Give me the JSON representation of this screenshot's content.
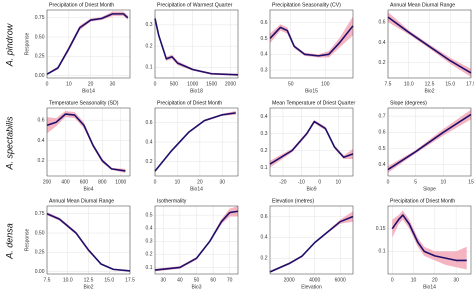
{
  "row_labels": [
    "A. pindrow",
    "A. spectabilis",
    "A. densa"
  ],
  "chart_data": [
    {
      "type": "line",
      "title": "Precipitation of Driest Month",
      "xlabel": "Bio14",
      "ylabel": "Response",
      "color": "#1f0f6b",
      "band_color": "#f3a7b7",
      "x": [
        0,
        5,
        10,
        15,
        20,
        25,
        30,
        35,
        37
      ],
      "values": [
        0.02,
        0.1,
        0.35,
        0.62,
        0.72,
        0.74,
        0.8,
        0.8,
        0.75
      ],
      "lower": [
        0.01,
        0.08,
        0.32,
        0.59,
        0.7,
        0.72,
        0.77,
        0.77,
        0.72
      ],
      "upper": [
        0.03,
        0.12,
        0.38,
        0.65,
        0.74,
        0.76,
        0.83,
        0.83,
        0.78
      ],
      "xlim": [
        0,
        38
      ],
      "ylim": [
        -0.03,
        0.85
      ],
      "xticks": [
        0,
        10,
        20,
        30
      ],
      "yticks": [
        {
          "value": 0,
          "label": "0.00"
        },
        0.25,
        {
          "value": 0.5,
          "label": "0.50"
        },
        0.75
      ]
    },
    {
      "type": "line",
      "title": "Precipitation of Warmest Quarter",
      "xlabel": "Bio18",
      "color": "#1f0f6b",
      "band_color": "#f3a7b7",
      "x": [
        0,
        100,
        300,
        450,
        600,
        1000,
        1500,
        2200
      ],
      "values": [
        0.33,
        0.25,
        0.14,
        0.15,
        0.12,
        0.09,
        0.07,
        0.065
      ],
      "lower": [
        0.31,
        0.24,
        0.13,
        0.14,
        0.11,
        0.085,
        0.065,
        0.06
      ],
      "upper": [
        0.35,
        0.26,
        0.15,
        0.16,
        0.13,
        0.095,
        0.075,
        0.07
      ],
      "xlim": [
        0,
        2200
      ],
      "ylim": [
        0.05,
        0.37
      ],
      "xticks": [
        0,
        500,
        1000,
        1500,
        2000
      ],
      "yticks": [
        0.1,
        0.2,
        0.3
      ]
    },
    {
      "type": "line",
      "title": "Precipitation Seasonality (CV)",
      "xlabel": "Bio15",
      "color": "#1f0f6b",
      "band_color": "#f3a7b7",
      "x": [
        20,
        35,
        45,
        55,
        70,
        90,
        105,
        120,
        140
      ],
      "values": [
        0.5,
        0.57,
        0.55,
        0.45,
        0.4,
        0.39,
        0.4,
        0.47,
        0.58
      ],
      "lower": [
        0.47,
        0.55,
        0.53,
        0.44,
        0.39,
        0.38,
        0.38,
        0.44,
        0.52
      ],
      "upper": [
        0.53,
        0.59,
        0.57,
        0.46,
        0.41,
        0.4,
        0.42,
        0.5,
        0.64
      ],
      "xlim": [
        20,
        140
      ],
      "ylim": [
        0.25,
        0.68
      ],
      "xticks": [
        50,
        100
      ],
      "yticks": [
        0.3,
        0.4,
        0.5,
        0.6
      ]
    },
    {
      "type": "line",
      "title": "Annual Mean Diurnal Range",
      "xlabel": "Bio2",
      "color": "#1f0f6b",
      "band_color": "#f3a7b7",
      "x": [
        7.5,
        10,
        12.5,
        15,
        17.5
      ],
      "values": [
        0.65,
        0.5,
        0.36,
        0.22,
        0.1
      ],
      "lower": [
        0.6,
        0.48,
        0.34,
        0.19,
        0.06
      ],
      "upper": [
        0.7,
        0.52,
        0.38,
        0.25,
        0.14
      ],
      "xlim": [
        7.5,
        17.5
      ],
      "ylim": [
        0.05,
        0.72
      ],
      "xticks": [
        7.5,
        {
          "value": 10,
          "label": "10.0"
        },
        12.5,
        {
          "value": 15,
          "label": "15.0"
        },
        17.5
      ],
      "yticks": [
        0.2,
        0.4,
        0.6
      ]
    },
    {
      "type": "line",
      "title": "Temperature Seasonality (SD)",
      "xlabel": "Bio4",
      "color": "#1f0f6b",
      "band_color": "#f3a7b7",
      "x": [
        200,
        300,
        400,
        500,
        600,
        700,
        800,
        900,
        1050
      ],
      "values": [
        0.55,
        0.58,
        0.66,
        0.65,
        0.55,
        0.35,
        0.2,
        0.12,
        0.1
      ],
      "lower": [
        0.47,
        0.54,
        0.63,
        0.62,
        0.52,
        0.33,
        0.18,
        0.11,
        0.08
      ],
      "upper": [
        0.63,
        0.62,
        0.69,
        0.68,
        0.58,
        0.37,
        0.22,
        0.13,
        0.12
      ],
      "xlim": [
        200,
        1100
      ],
      "ylim": [
        0.05,
        0.72
      ],
      "xticks": [
        200,
        400,
        600,
        800,
        1000
      ],
      "yticks": [
        0.2,
        0.4,
        0.6
      ]
    },
    {
      "type": "line",
      "title": "Precipitation of Driest Month",
      "xlabel": "Bio14",
      "color": "#1f0f6b",
      "band_color": "#f3a7b7",
      "x": [
        0,
        7,
        15,
        22,
        30,
        36
      ],
      "values": [
        0.1,
        0.3,
        0.5,
        0.62,
        0.68,
        0.7
      ],
      "lower": [
        0.09,
        0.29,
        0.49,
        0.61,
        0.67,
        0.68
      ],
      "upper": [
        0.11,
        0.31,
        0.51,
        0.63,
        0.69,
        0.72
      ],
      "xlim": [
        0,
        37
      ],
      "ylim": [
        0.05,
        0.75
      ],
      "xticks": [
        0,
        10,
        20,
        30
      ],
      "yticks": [
        0.2,
        0.4,
        0.6
      ]
    },
    {
      "type": "line",
      "title": "Mean Temperature of Driest Quarter",
      "xlabel": "Bio9",
      "color": "#1f0f6b",
      "band_color": "#f3a7b7",
      "x": [
        -27,
        -15,
        -7,
        -3,
        3,
        8,
        13,
        18
      ],
      "values": [
        0.12,
        0.2,
        0.3,
        0.37,
        0.33,
        0.22,
        0.16,
        0.18
      ],
      "lower": [
        0.1,
        0.19,
        0.29,
        0.36,
        0.32,
        0.21,
        0.15,
        0.15
      ],
      "upper": [
        0.14,
        0.21,
        0.31,
        0.38,
        0.34,
        0.23,
        0.17,
        0.21
      ],
      "xlim": [
        -27,
        18
      ],
      "ylim": [
        0.05,
        0.45
      ],
      "xticks": [
        -20,
        -10,
        0,
        10
      ],
      "yticks": [
        0.1,
        0.2,
        0.3,
        0.4
      ]
    },
    {
      "type": "line",
      "title": "Slope (degrees)",
      "xlabel": "Slope",
      "color": "#1f0f6b",
      "band_color": "#f3a7b7",
      "x": [
        0,
        5,
        10,
        15
      ],
      "values": [
        0.37,
        0.48,
        0.6,
        0.71
      ],
      "lower": [
        0.35,
        0.47,
        0.58,
        0.68
      ],
      "upper": [
        0.39,
        0.49,
        0.62,
        0.74
      ],
      "xlim": [
        0,
        15
      ],
      "ylim": [
        0.33,
        0.75
      ],
      "xticks": [
        0,
        5,
        10,
        15
      ],
      "yticks": [
        0.4,
        0.5,
        0.6,
        0.7
      ]
    },
    {
      "type": "line",
      "title": "Annual Mean Diurnal Range",
      "xlabel": "Bio2",
      "ylabel": "Response",
      "color": "#1f0f6b",
      "band_color": "#f3a7b7",
      "x": [
        7.5,
        9,
        11,
        12.5,
        14,
        15.5,
        17.5
      ],
      "values": [
        0.75,
        0.68,
        0.5,
        0.28,
        0.1,
        0.03,
        0.01
      ],
      "lower": [
        0.73,
        0.66,
        0.48,
        0.26,
        0.09,
        0.02,
        0.0
      ],
      "upper": [
        0.77,
        0.7,
        0.52,
        0.3,
        0.11,
        0.04,
        0.02
      ],
      "xlim": [
        7.5,
        17.5
      ],
      "ylim": [
        -0.03,
        0.85
      ],
      "xticks": [
        7.5,
        {
          "value": 10,
          "label": "10.0"
        },
        12.5,
        {
          "value": 15,
          "label": "15.0"
        },
        17.5
      ],
      "yticks": [
        {
          "value": 0,
          "label": "0.00"
        },
        0.25,
        {
          "value": 0.5,
          "label": "0.50"
        },
        0.75
      ]
    },
    {
      "type": "line",
      "title": "Isothermality",
      "xlabel": "Bio3",
      "color": "#1f0f6b",
      "band_color": "#f3a7b7",
      "x": [
        25,
        40,
        50,
        58,
        65,
        70,
        75
      ],
      "values": [
        0.08,
        0.1,
        0.17,
        0.3,
        0.45,
        0.52,
        0.53
      ],
      "lower": [
        0.07,
        0.09,
        0.16,
        0.29,
        0.43,
        0.49,
        0.49
      ],
      "upper": [
        0.09,
        0.11,
        0.18,
        0.31,
        0.47,
        0.55,
        0.57
      ],
      "xlim": [
        25,
        75
      ],
      "ylim": [
        0.05,
        0.57
      ],
      "xticks": [
        30,
        40,
        50,
        60,
        70
      ],
      "yticks": [
        0.1,
        0.2,
        0.3,
        0.4,
        0.5
      ]
    },
    {
      "type": "line",
      "title": "Elevation (metres)",
      "xlabel": "Elevation",
      "color": "#1f0f6b",
      "band_color": "#f3a7b7",
      "x": [
        500,
        2000,
        3000,
        4000,
        5000,
        6000,
        7000
      ],
      "values": [
        0.07,
        0.15,
        0.22,
        0.35,
        0.45,
        0.55,
        0.6
      ],
      "lower": [
        0.06,
        0.14,
        0.21,
        0.34,
        0.44,
        0.53,
        0.55
      ],
      "upper": [
        0.08,
        0.16,
        0.23,
        0.36,
        0.46,
        0.57,
        0.65
      ],
      "xlim": [
        500,
        7000
      ],
      "ylim": [
        0.05,
        0.7
      ],
      "xticks": [
        2000,
        4000,
        6000
      ],
      "yticks": [
        0.2,
        0.4,
        0.6
      ]
    },
    {
      "type": "line",
      "title": "Precipitation of Driest Month",
      "xlabel": "Bio14",
      "color": "#1f0f6b",
      "band_color": "#f3a7b7",
      "x": [
        0,
        3,
        5,
        8,
        12,
        15,
        20,
        25,
        30,
        35
      ],
      "values": [
        0.15,
        0.17,
        0.18,
        0.16,
        0.12,
        0.1,
        0.09,
        0.085,
        0.08,
        0.08
      ],
      "lower": [
        0.13,
        0.16,
        0.17,
        0.15,
        0.11,
        0.09,
        0.08,
        0.07,
        0.065,
        0.06
      ],
      "upper": [
        0.17,
        0.18,
        0.19,
        0.17,
        0.13,
        0.11,
        0.1,
        0.1,
        0.1,
        0.11
      ],
      "xlim": [
        -2,
        37
      ],
      "ylim": [
        0.05,
        0.2
      ],
      "xticks": [
        0,
        10,
        20,
        30
      ],
      "yticks": [
        0.1,
        0.15
      ]
    }
  ]
}
